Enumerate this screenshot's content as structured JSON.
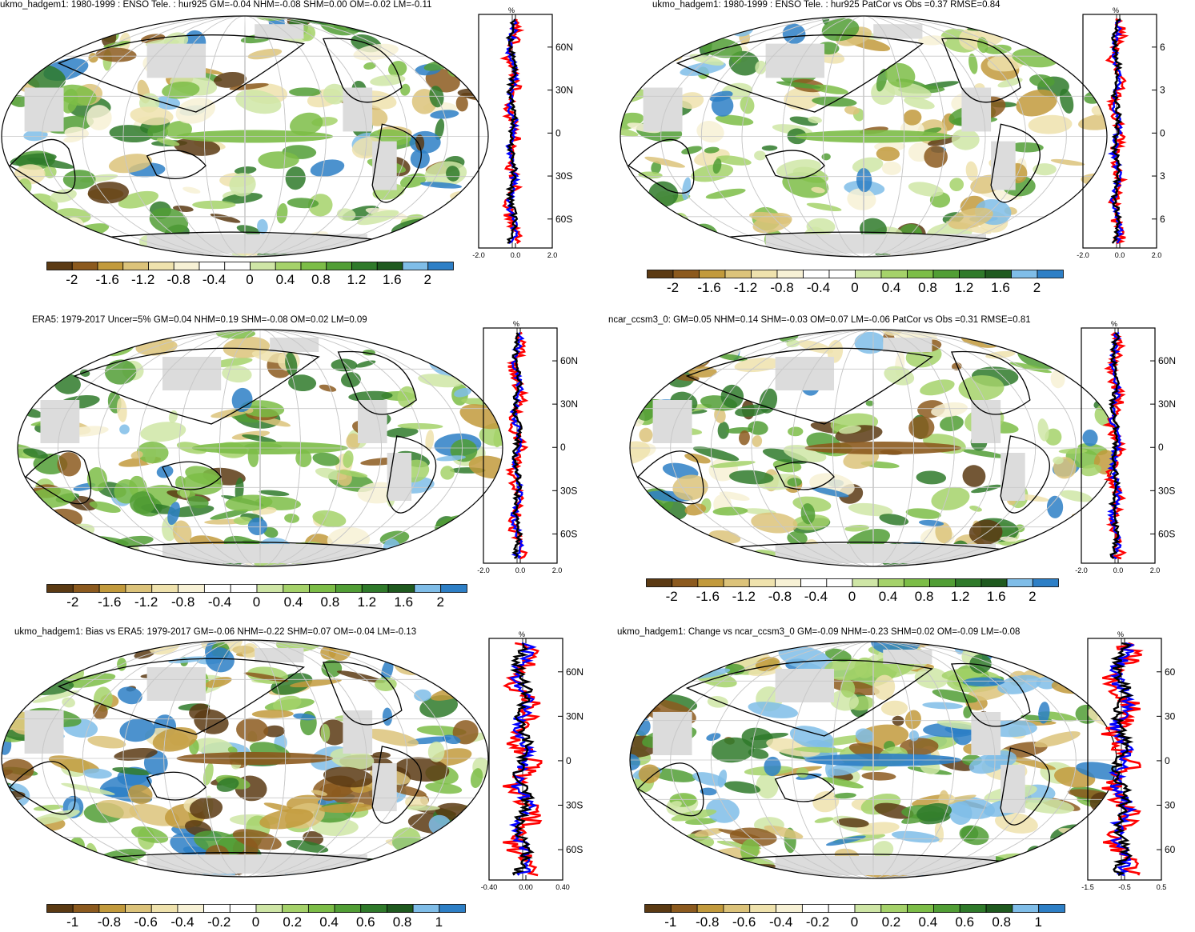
{
  "colors": {
    "brown_dark": "#5b3a13",
    "brown": "#8c5a1e",
    "ochre": "#c29a3c",
    "tan": "#dcc37a",
    "sand": "#efe2ad",
    "cream": "#f7f1d5",
    "white": "#ffffff",
    "lightgreen": "#cfe6a6",
    "green1": "#a5d26a",
    "green2": "#7cbd47",
    "green3": "#519e35",
    "green4": "#2f7a2a",
    "darkgreen": "#1f5a1f",
    "lightblue": "#7fbde8",
    "blue": "#2d7fc6",
    "land_mask": "#dcdcdc",
    "obs_line": "#ff0000",
    "model_line": "#0000ff",
    "zonal_line": "#000000"
  },
  "panels": [
    {
      "id": "p1",
      "title": "ukmo_hadgem1: 1980-1999 : ENSO Tele. : hur925 GM=-0.04 NHM=-0.08 SHM=0.00 OM=-0.02 LM=-0.11",
      "profile": {
        "unit": "%",
        "xticks": [
          "-2.0",
          "0.0",
          "2.0"
        ],
        "lat_labels": [
          "60N",
          "30N",
          "0",
          "30S",
          "60S"
        ]
      },
      "colorbar": [
        "-2",
        "-1.6",
        "-1.2",
        "-0.8",
        "-0.4",
        "0",
        "0.4",
        "0.8",
        "1.2",
        "1.6",
        "2"
      ]
    },
    {
      "id": "p2",
      "title": "ukmo_hadgem1: 1980-1999 : ENSO Tele. : hur925 PatCor vs Obs =0.37 RMSE=0.84",
      "profile": {
        "unit": "%",
        "xticks": [
          "-2.0",
          "0.0",
          "2.0"
        ],
        "lat_labels": [
          "6",
          "3",
          "0",
          "3",
          "6"
        ]
      },
      "colorbar": [
        "-2",
        "-1.6",
        "-1.2",
        "-0.8",
        "-0.4",
        "0",
        "0.4",
        "0.8",
        "1.2",
        "1.6",
        "2"
      ]
    },
    {
      "id": "p3",
      "title": "ERA5: 1979-2017 Uncer=5% GM=0.04 NHM=0.19 SHM=-0.08 OM=0.02 LM=0.09",
      "profile": {
        "unit": "%",
        "xticks": [
          "-2.0",
          "0.0",
          "2.0"
        ],
        "lat_labels": [
          "60N",
          "30N",
          "0",
          "30S",
          "60S"
        ]
      },
      "colorbar": [
        "-2",
        "-1.6",
        "-1.2",
        "-0.8",
        "-0.4",
        "0",
        "0.4",
        "0.8",
        "1.2",
        "1.6",
        "2"
      ]
    },
    {
      "id": "p4",
      "title": "ncar_ccsm3_0: GM=0.05 NHM=0.14 SHM=-0.03 OM=0.07 LM=-0.06 PatCor vs Obs =0.31 RMSE=0.81",
      "profile": {
        "unit": "%",
        "xticks": [
          "-2.0",
          "0.0",
          "2.0"
        ],
        "lat_labels": [
          "60N",
          "30N",
          "0",
          "30S",
          "60S"
        ]
      },
      "colorbar": [
        "-2",
        "-1.6",
        "-1.2",
        "-0.8",
        "-0.4",
        "0",
        "0.4",
        "0.8",
        "1.2",
        "1.6",
        "2"
      ]
    },
    {
      "id": "p5",
      "title": "ukmo_hadgem1: Bias vs ERA5: 1979-2017 GM=-0.06 NHM=-0.22 SHM=0.07 OM=-0.04 LM=-0.13",
      "profile": {
        "unit": "%",
        "xticks": [
          "-0.40",
          "0.00",
          "0.40"
        ],
        "lat_labels": [
          "60N",
          "30N",
          "0",
          "30S",
          "60S"
        ]
      },
      "colorbar": [
        "-1",
        "-0.8",
        "-0.6",
        "-0.4",
        "-0.2",
        "0",
        "0.2",
        "0.4",
        "0.6",
        "0.8",
        "1"
      ]
    },
    {
      "id": "p6",
      "title": "ukmo_hadgem1: Change vs ncar_ccsm3_0 GM=-0.09 NHM=-0.23 SHM=0.02 OM=-0.09 LM=-0.08",
      "profile": {
        "unit": "%",
        "xticks": [
          "-1.5",
          "-0.5",
          "0.5"
        ],
        "lat_labels": [
          "60",
          "30",
          "0",
          "30",
          "60"
        ]
      },
      "colorbar": [
        "-1",
        "-0.8",
        "-0.6",
        "-0.4",
        "-0.2",
        "0",
        "0.2",
        "0.4",
        "0.6",
        "0.8",
        "1"
      ]
    }
  ]
}
